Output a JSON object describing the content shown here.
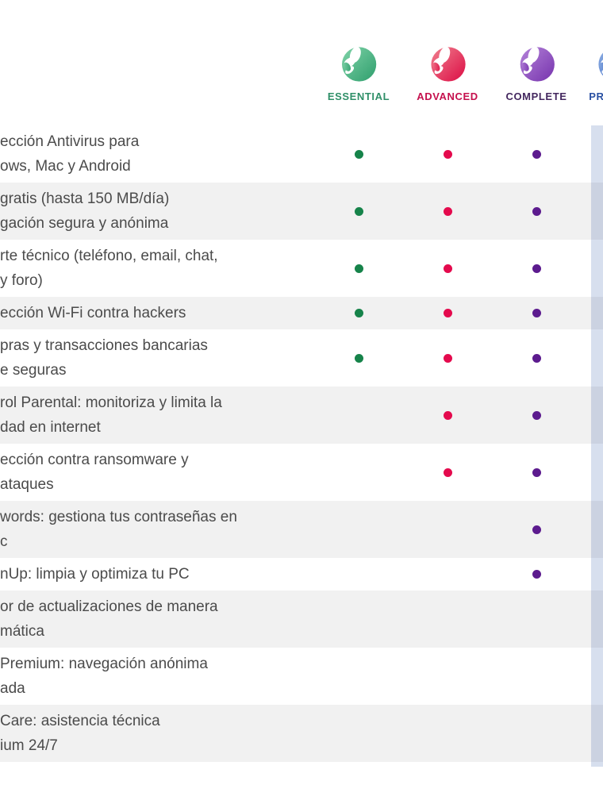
{
  "plans": [
    {
      "name": "ESSENTIAL",
      "label_color": "#2f8f68",
      "dot_color": "#16834a",
      "logo_light": "#7fd3a8",
      "logo_dark": "#2f9e6d"
    },
    {
      "name": "ADVANCED",
      "label_color": "#c5104d",
      "dot_color": "#e40a4d",
      "logo_light": "#f0808f",
      "logo_dark": "#dc0c44"
    },
    {
      "name": "COMPLETE",
      "label_color": "#44285f",
      "dot_color": "#5c1b8e",
      "logo_light": "#b483d9",
      "logo_dark": "#7633ad"
    },
    {
      "name": "PREMIUM",
      "label_color": "#2a51a3",
      "dot_color": "#2a51a3",
      "logo_light": "#8fb0e3",
      "logo_dark": "#3d68c4"
    }
  ],
  "premium_strip_color": "#d7dfee",
  "features": [
    {
      "lines": [
        "ección Antivirus para",
        "ows, Mac y Android"
      ],
      "included": [
        true,
        true,
        true
      ]
    },
    {
      "lines": [
        "gratis (hasta 150 MB/día)",
        "gación segura y anónima"
      ],
      "included": [
        true,
        true,
        true
      ]
    },
    {
      "lines": [
        "rte técnico (teléfono, email, chat,",
        "y foro)"
      ],
      "included": [
        true,
        true,
        true
      ]
    },
    {
      "lines": [
        "ección Wi-Fi contra hackers"
      ],
      "included": [
        true,
        true,
        true
      ]
    },
    {
      "lines": [
        "pras y transacciones bancarias",
        "e seguras"
      ],
      "included": [
        true,
        true,
        true
      ]
    },
    {
      "lines": [
        "rol Parental: monitoriza y limita la",
        "dad en internet"
      ],
      "included": [
        false,
        true,
        true
      ]
    },
    {
      "lines": [
        "ección contra ransomware y",
        "ataques"
      ],
      "included": [
        false,
        true,
        true
      ]
    },
    {
      "lines": [
        "words: gestiona tus contraseñas en",
        "c"
      ],
      "included": [
        false,
        false,
        true
      ]
    },
    {
      "lines": [
        "nUp: limpia y optimiza tu PC"
      ],
      "included": [
        false,
        false,
        true
      ]
    },
    {
      "lines": [
        "or de actualizaciones de manera",
        "mática"
      ],
      "included": [
        false,
        false,
        false
      ]
    },
    {
      "lines": [
        "Premium: navegación anónima",
        "ada"
      ],
      "included": [
        false,
        false,
        false
      ]
    },
    {
      "lines": [
        "Care: asistencia técnica",
        "ium 24/7"
      ],
      "included": [
        false,
        false,
        false
      ]
    }
  ]
}
